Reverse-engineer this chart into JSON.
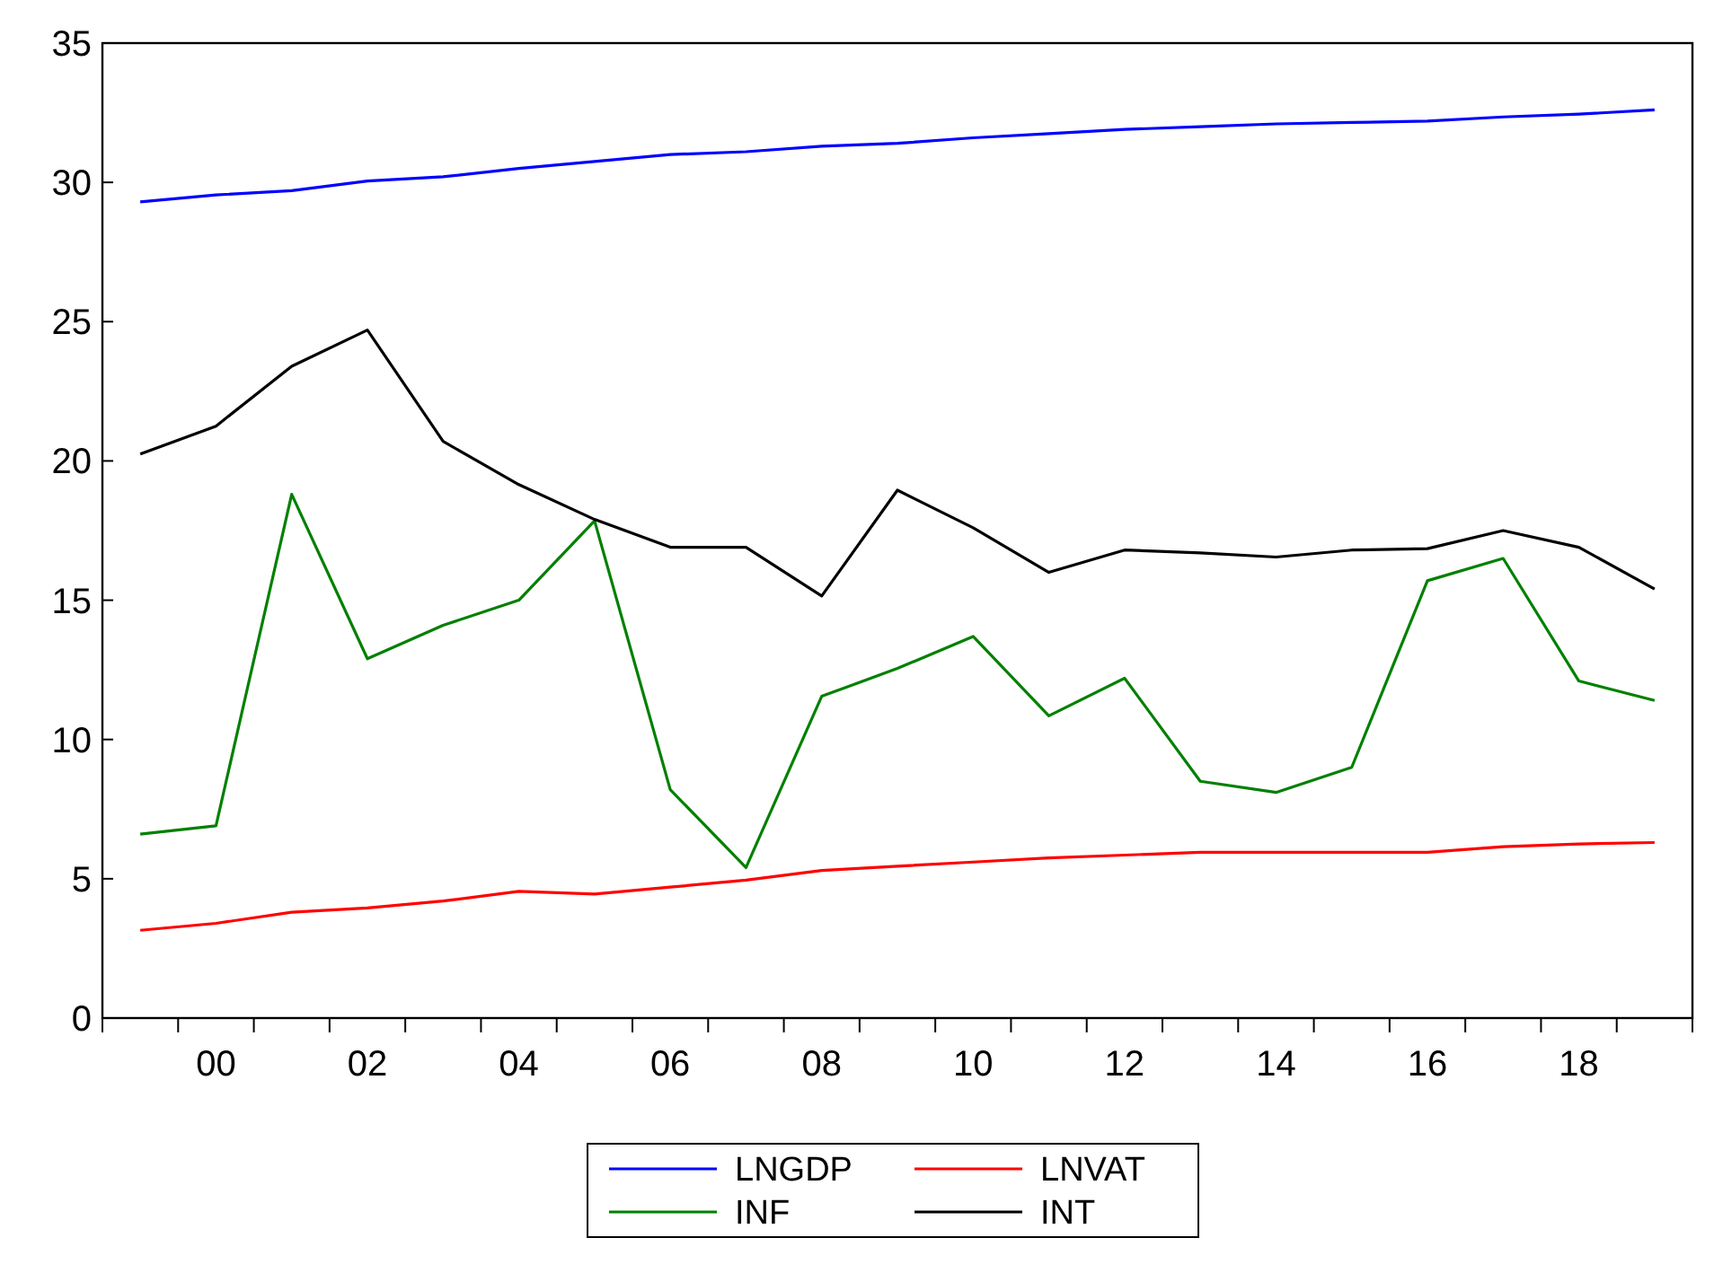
{
  "chart_data": {
    "type": "line",
    "categories": [
      null,
      "00",
      null,
      "02",
      null,
      "04",
      null,
      "06",
      null,
      "08",
      null,
      "10",
      null,
      "12",
      null,
      "14",
      null,
      "16",
      null,
      "18",
      null
    ],
    "ylim": [
      0,
      35
    ],
    "yticks": [
      0,
      5,
      10,
      15,
      20,
      25,
      30,
      35
    ],
    "grid": false,
    "legend": "bottom",
    "line_style": "solid",
    "marker": "none",
    "series": [
      {
        "name": "LNGDP",
        "color": "#0000ff",
        "values": [
          29.3,
          29.55,
          29.7,
          30.05,
          30.2,
          30.5,
          30.75,
          31.0,
          31.1,
          31.3,
          31.4,
          31.6,
          31.75,
          31.9,
          32.0,
          32.1,
          32.15,
          32.2,
          32.35,
          32.45,
          32.6
        ]
      },
      {
        "name": "LNVAT",
        "color": "#ff0000",
        "values": [
          3.15,
          3.4,
          3.8,
          3.95,
          4.2,
          4.55,
          4.45,
          4.7,
          4.95,
          5.3,
          5.45,
          5.6,
          5.75,
          5.85,
          5.95,
          5.95,
          5.95,
          5.95,
          6.15,
          6.25,
          6.3
        ]
      },
      {
        "name": "INF",
        "color": "#008000",
        "values": [
          6.6,
          6.9,
          18.8,
          12.9,
          14.1,
          15.0,
          17.85,
          8.2,
          5.4,
          11.55,
          12.55,
          13.7,
          10.85,
          12.2,
          8.5,
          8.1,
          9.0,
          15.7,
          16.5,
          12.1,
          11.4
        ]
      },
      {
        "name": "INT",
        "color": "#000000",
        "values": [
          20.25,
          21.25,
          23.4,
          24.7,
          20.7,
          19.15,
          17.9,
          16.9,
          16.9,
          15.15,
          18.95,
          17.6,
          16.0,
          16.8,
          16.7,
          16.55,
          16.8,
          16.85,
          17.5,
          16.9,
          15.4
        ]
      }
    ]
  }
}
